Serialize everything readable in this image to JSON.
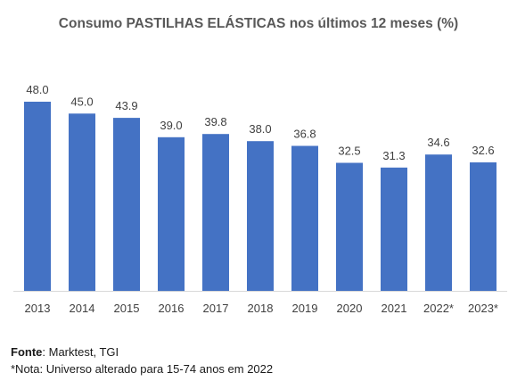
{
  "title": "Consumo PASTILHAS ELÁSTICAS nos últimos 12 meses (%)",
  "footer": {
    "source_label": "Fonte",
    "source_text": ": Marktest, TGI",
    "note": "*Nota: Universo alterado para 15-74 anos em 2022"
  },
  "colors": {
    "bar": "#4472C4",
    "axis": "#d9d9d9",
    "label": "#404040"
  },
  "chart_data": {
    "type": "bar",
    "title": "Consumo PASTILHAS ELÁSTICAS nos últimos 12 meses (%)",
    "xlabel": "",
    "ylabel": "",
    "categories": [
      "2013",
      "2014",
      "2015",
      "2016",
      "2017",
      "2018",
      "2019",
      "2020",
      "2021",
      "2022*",
      "2023*"
    ],
    "values": [
      48.0,
      45.0,
      43.9,
      39.0,
      39.8,
      38.0,
      36.8,
      32.5,
      31.3,
      34.6,
      32.6
    ],
    "ylim": [
      0,
      48
    ],
    "grid": false,
    "legend": "none"
  }
}
